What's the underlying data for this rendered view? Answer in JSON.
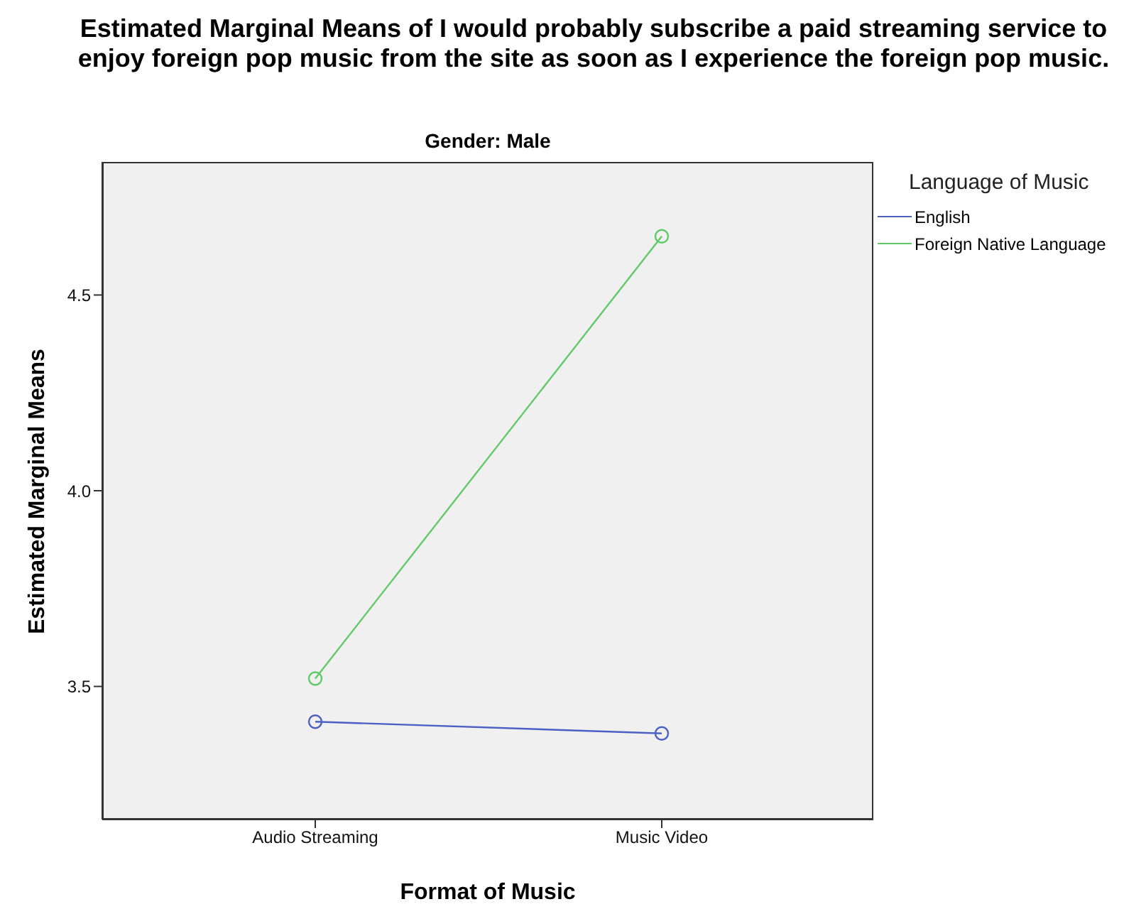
{
  "chart_data": {
    "type": "line",
    "title": "Estimated Marginal Means of I would probably subscribe a paid streaming service to enjoy foreign pop music from the site as soon as I experience the foreign pop music.",
    "subtitle": "Gender: Male",
    "xlabel": "Format of Music",
    "ylabel": "Estimated Marginal Means",
    "legend_title": "Language of Music",
    "categories": [
      "Audio Streaming",
      "Music Video"
    ],
    "series": [
      {
        "name": "English",
        "color": "#4b5fc4",
        "values": [
          3.41,
          3.38
        ]
      },
      {
        "name": "Foreign Native Language",
        "color": "#62c96a",
        "values": [
          3.52,
          4.65
        ]
      }
    ],
    "ylim": [
      3.16,
      4.84
    ],
    "yticks": [
      3.5,
      {
        "value": 4,
        "label": "4.0"
      },
      4.5
    ],
    "marker": "circle",
    "legend": "top right"
  }
}
